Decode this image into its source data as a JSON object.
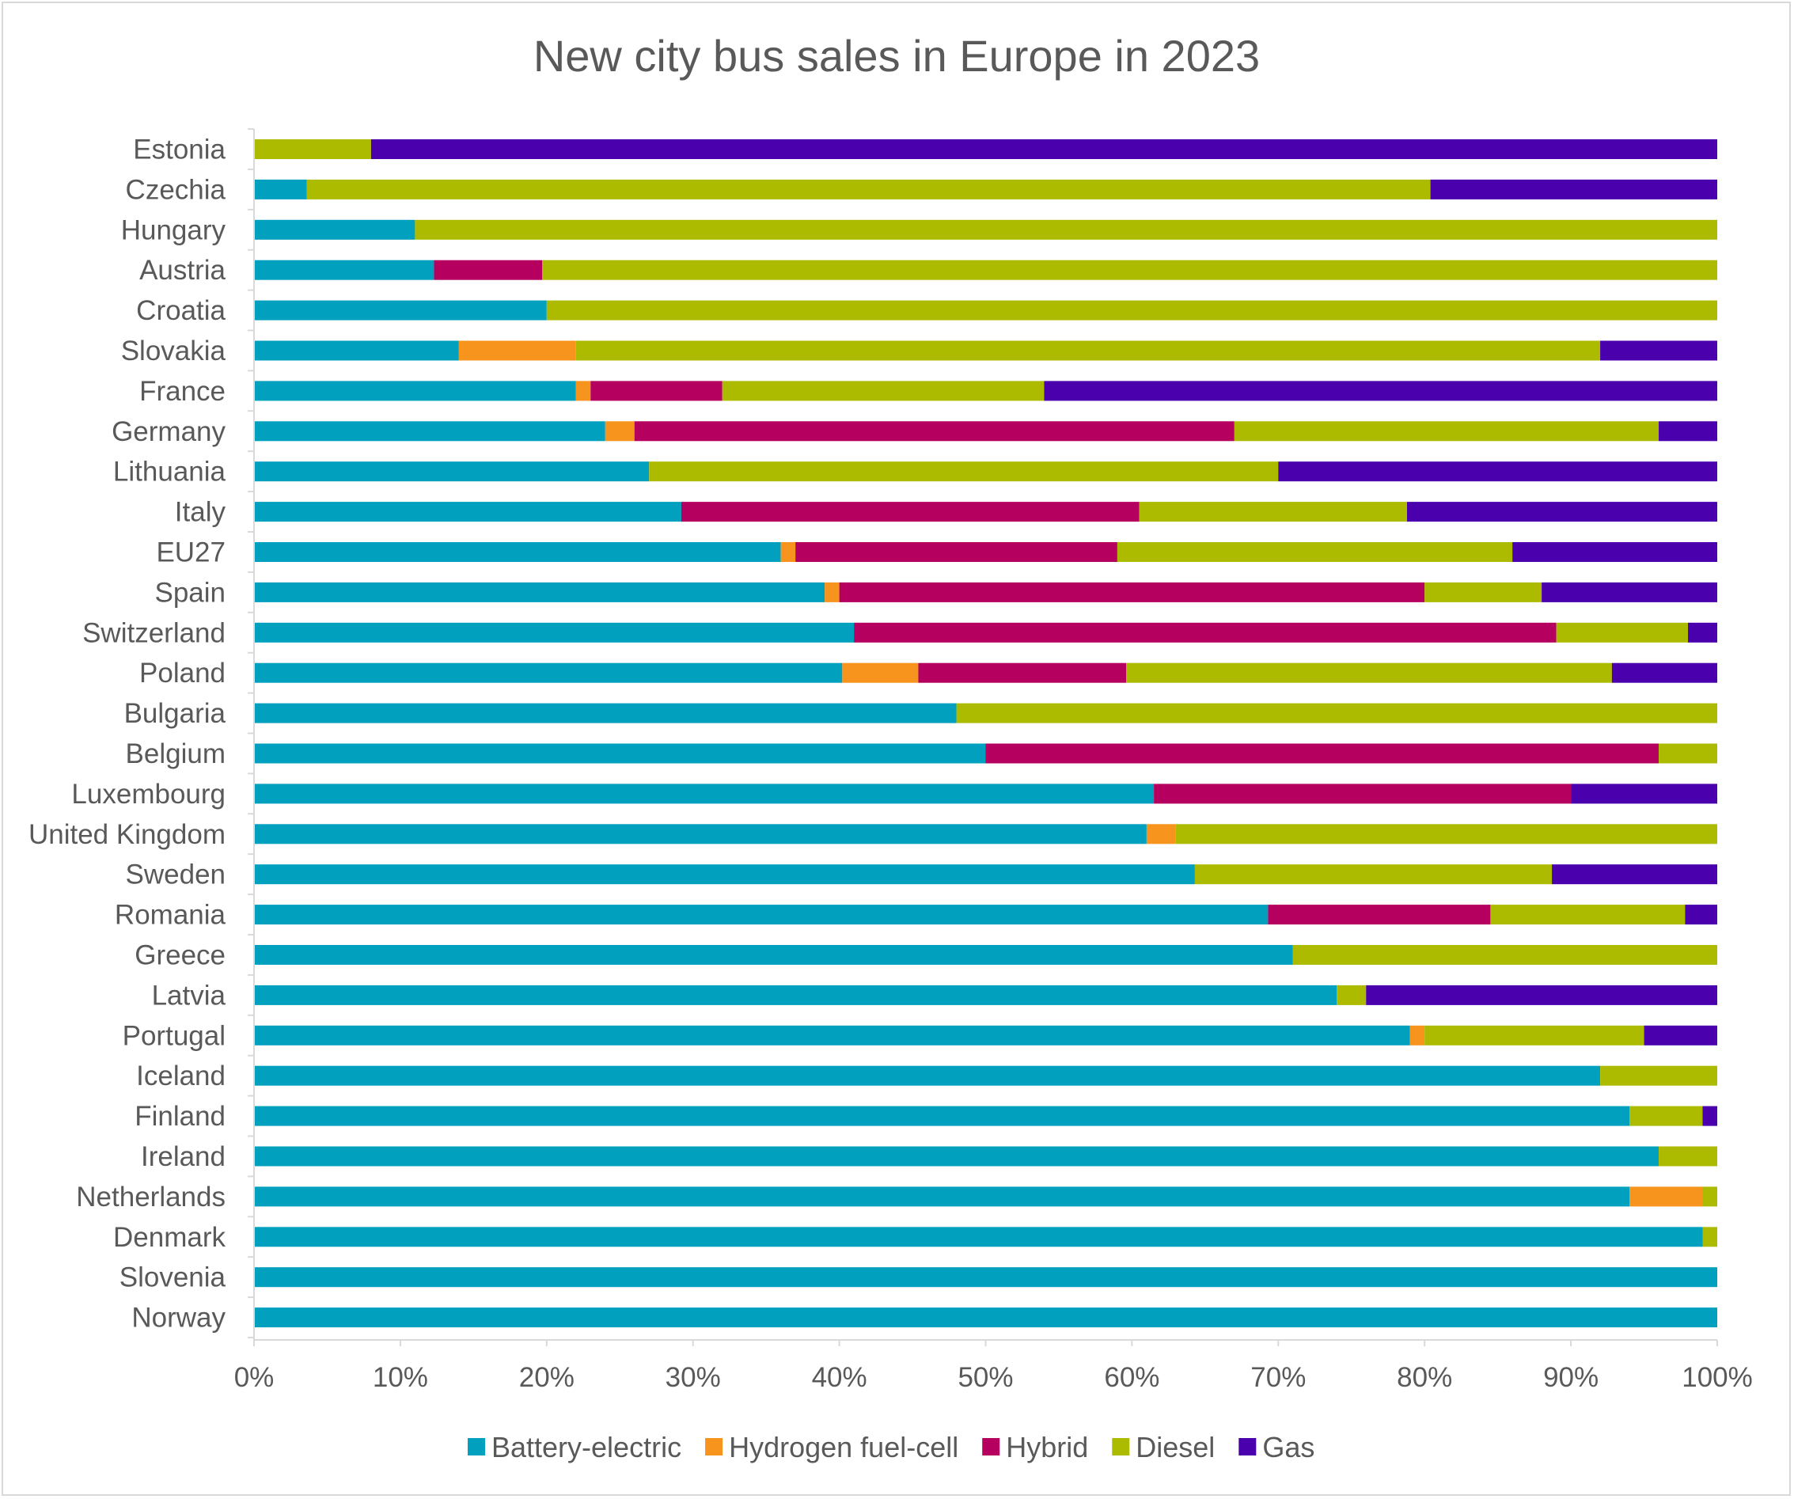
{
  "chart_data": {
    "type": "bar",
    "orientation": "horizontal",
    "stacked": "percent",
    "title": "New city bus sales in Europe in 2023",
    "xlabel": "",
    "ylabel": "",
    "xlim": [
      0,
      100
    ],
    "x_ticks": [
      "0%",
      "10%",
      "20%",
      "30%",
      "40%",
      "50%",
      "60%",
      "70%",
      "80%",
      "90%",
      "100%"
    ],
    "grid": false,
    "legend_position": "bottom",
    "categories": [
      "Estonia",
      "Czechia",
      "Hungary",
      "Austria",
      "Croatia",
      "Slovakia",
      "France",
      "Germany",
      "Lithuania",
      "Italy",
      "EU27",
      "Spain",
      "Switzerland",
      "Poland",
      "Bulgaria",
      "Belgium",
      "Luxembourg",
      "United Kingdom",
      "Sweden",
      "Romania",
      "Greece",
      "Latvia",
      "Portugal",
      "Iceland",
      "Finland",
      "Ireland",
      "Netherlands",
      "Denmark",
      "Slovenia",
      "Norway"
    ],
    "series": [
      {
        "name": "Battery-electric",
        "color": "#00A0BE",
        "values": [
          0,
          3.6,
          11,
          12.3,
          20,
          14,
          22,
          24,
          27,
          29.2,
          36,
          39,
          41,
          40.2,
          48,
          50,
          61.5,
          61,
          64.3,
          69.3,
          71,
          74,
          79,
          92,
          94,
          96,
          94,
          99,
          100,
          100
        ]
      },
      {
        "name": "Hydrogen fuel-cell",
        "color": "#F7941D",
        "values": [
          0,
          0,
          0,
          0,
          0,
          8,
          1,
          2,
          0,
          0,
          1,
          1,
          0,
          5.2,
          0,
          0,
          0,
          2,
          0,
          0,
          0,
          0,
          1,
          0,
          0,
          0,
          5,
          0,
          0,
          0
        ]
      },
      {
        "name": "Hybrid",
        "color": "#B5005F",
        "values": [
          0,
          0,
          0,
          7.4,
          0,
          0,
          9,
          41,
          0,
          31.3,
          22,
          40,
          48,
          14.2,
          0,
          46,
          28.5,
          0,
          0,
          15.2,
          0,
          0,
          0,
          0,
          0,
          0,
          0,
          0,
          0,
          0
        ]
      },
      {
        "name": "Diesel",
        "color": "#ADBB00",
        "values": [
          8,
          76.8,
          89,
          80.3,
          80,
          70,
          22,
          29,
          43,
          18.3,
          27,
          8,
          9,
          33.2,
          52,
          4,
          0,
          37,
          24.4,
          13.3,
          29,
          2,
          15,
          8,
          5,
          4,
          1,
          1,
          0,
          0
        ]
      },
      {
        "name": "Gas",
        "color": "#4B00AE",
        "values": [
          92,
          19.6,
          0,
          0,
          0,
          8,
          46,
          4,
          30,
          21.2,
          14,
          12,
          2,
          7.2,
          0,
          0,
          10,
          0,
          11.3,
          2.2,
          0,
          24,
          5,
          0,
          1,
          0,
          0,
          0,
          0,
          0
        ]
      }
    ]
  }
}
